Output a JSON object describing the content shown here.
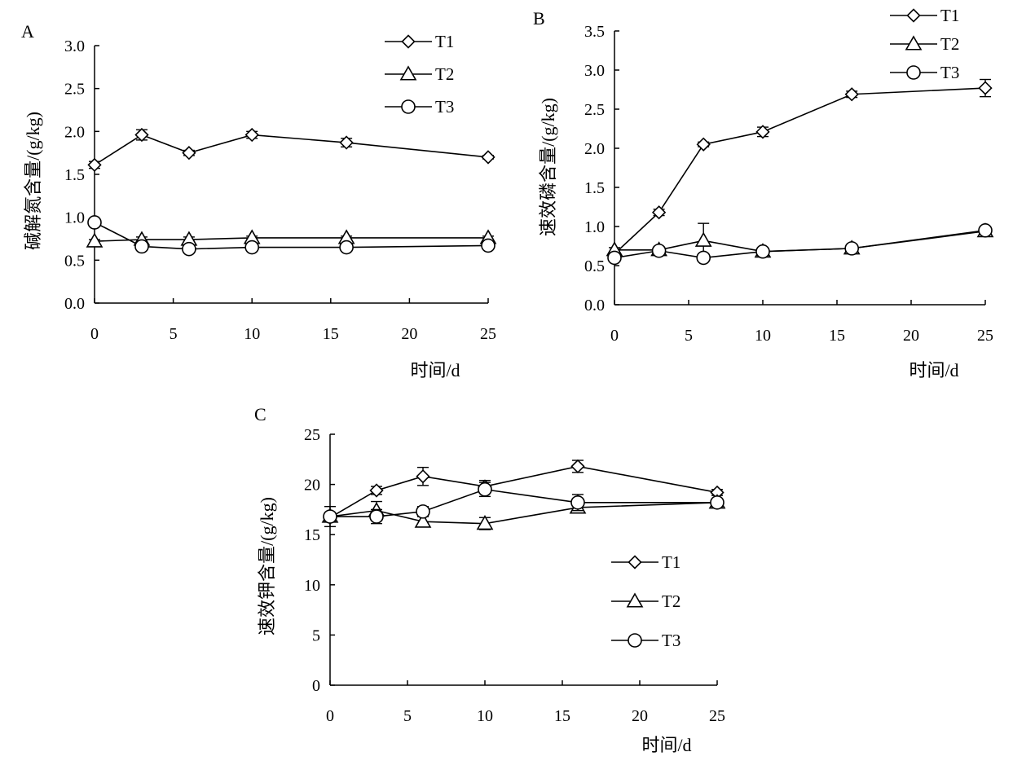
{
  "chart_data": [
    {
      "panel": "A",
      "type": "line",
      "title": "",
      "xlabel": "时间/d",
      "ylabel": "碱解氮含量/(g/kg)",
      "xlim": [
        0,
        25
      ],
      "ylim": [
        0.0,
        3.0
      ],
      "x_ticks": [
        0,
        5,
        10,
        15,
        20,
        25
      ],
      "y_ticks": [
        "0.0",
        "0.5",
        "1.0",
        "1.5",
        "2.0",
        "2.5",
        "3.0"
      ],
      "x": [
        0,
        3,
        6,
        10,
        16,
        25
      ],
      "legend_position": "top-right",
      "series": [
        {
          "name": "T1",
          "marker": "diamond",
          "values": [
            1.61,
            1.96,
            1.75,
            1.96,
            1.87,
            1.7
          ],
          "errors": [
            0.04,
            0.06,
            0.03,
            0.04,
            0.05,
            0.02
          ]
        },
        {
          "name": "T2",
          "marker": "triangle",
          "values": [
            0.72,
            0.74,
            0.74,
            0.76,
            0.76,
            0.76
          ],
          "errors": [
            0.02,
            0.03,
            0.03,
            0.02,
            0.02,
            0.02
          ]
        },
        {
          "name": "T3",
          "marker": "circle",
          "values": [
            0.94,
            0.66,
            0.63,
            0.65,
            0.65,
            0.67
          ],
          "errors": [
            0.02,
            0.02,
            0.02,
            0.02,
            0.02,
            0.02
          ]
        }
      ]
    },
    {
      "panel": "B",
      "type": "line",
      "title": "",
      "xlabel": "时间/d",
      "ylabel": "速效磷含量/(g/kg)",
      "xlim": [
        0,
        25
      ],
      "ylim": [
        0.0,
        3.5
      ],
      "x_ticks": [
        0,
        5,
        10,
        15,
        20,
        25
      ],
      "y_ticks": [
        "0.0",
        "0.5",
        "1.0",
        "1.5",
        "2.0",
        "2.5",
        "3.0",
        "3.5"
      ],
      "x": [
        0,
        3,
        6,
        10,
        16,
        25
      ],
      "legend_position": "top-right",
      "series": [
        {
          "name": "T1",
          "marker": "diamond",
          "values": [
            0.65,
            1.18,
            2.05,
            2.21,
            2.69,
            2.77
          ],
          "errors": [
            0.03,
            0.04,
            0.03,
            0.06,
            0.04,
            0.11
          ]
        },
        {
          "name": "T2",
          "marker": "triangle",
          "values": [
            0.7,
            0.7,
            0.82,
            0.68,
            0.72,
            0.94
          ],
          "errors": [
            0.03,
            0.04,
            0.22,
            0.03,
            0.04,
            0.04
          ]
        },
        {
          "name": "T3",
          "marker": "circle",
          "values": [
            0.6,
            0.69,
            0.6,
            0.68,
            0.72,
            0.95
          ],
          "errors": [
            0.02,
            0.02,
            0.02,
            0.02,
            0.03,
            0.04
          ]
        }
      ]
    },
    {
      "panel": "C",
      "type": "line",
      "title": "",
      "xlabel": "时间/d",
      "ylabel": "速效钾含量/(g/kg)",
      "xlim": [
        0,
        25
      ],
      "ylim": [
        0,
        25
      ],
      "x_ticks": [
        0,
        5,
        10,
        15,
        20,
        25
      ],
      "y_ticks": [
        "0",
        "5",
        "10",
        "15",
        "20",
        "25"
      ],
      "x": [
        0,
        3,
        6,
        10,
        16,
        25
      ],
      "legend_position": "center-right",
      "series": [
        {
          "name": "T1",
          "marker": "diamond",
          "values": [
            16.7,
            19.4,
            20.8,
            19.8,
            21.8,
            19.2
          ],
          "errors": [
            0.4,
            0.4,
            0.9,
            0.6,
            0.6,
            0.3
          ]
        },
        {
          "name": "T2",
          "marker": "triangle",
          "values": [
            16.8,
            17.4,
            16.3,
            16.1,
            17.7,
            18.2
          ],
          "errors": [
            1.0,
            0.9,
            0.5,
            0.6,
            0.4,
            0.4
          ]
        },
        {
          "name": "T3",
          "marker": "circle",
          "values": [
            16.8,
            16.8,
            17.3,
            19.5,
            18.2,
            18.2
          ],
          "errors": [
            0.4,
            0.7,
            0.5,
            0.7,
            0.8,
            0.4
          ]
        }
      ]
    }
  ]
}
